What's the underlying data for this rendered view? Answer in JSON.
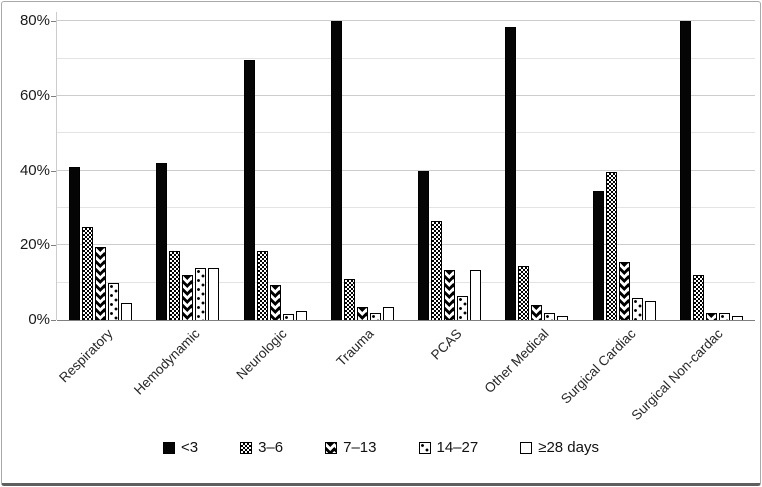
{
  "chart_data": {
    "type": "bar",
    "title": "",
    "xlabel": "",
    "ylabel": "",
    "categories": [
      "Respiratory",
      "Hemodynamic",
      "Neurologic",
      "Trauma",
      "PCAS",
      "Other Medical",
      "Surgical Cardiac",
      "Surgical Non-cardac"
    ],
    "series": [
      {
        "name": "<3",
        "pattern": "solid",
        "values": [
          41,
          42,
          69.5,
          80,
          40,
          78.5,
          34.5,
          80
        ]
      },
      {
        "name": "3–6",
        "pattern": "checker",
        "values": [
          25,
          18.5,
          18.5,
          11,
          26.5,
          14.5,
          39.5,
          12
        ]
      },
      {
        "name": "7–13",
        "pattern": "wave",
        "values": [
          19.5,
          12,
          9.5,
          3.5,
          13.5,
          4,
          15.5,
          2
        ]
      },
      {
        "name": "14–27",
        "pattern": "dots",
        "values": [
          10,
          14,
          1.5,
          2,
          6.5,
          2,
          6,
          2
        ]
      },
      {
        "name": "≥28 days",
        "pattern": "white",
        "values": [
          4.5,
          14,
          2.5,
          3.5,
          13.5,
          1,
          5,
          1
        ]
      }
    ],
    "y_axis": {
      "min": 0,
      "max": 80,
      "tick_labels": [
        "0%",
        "20%",
        "40%",
        "60%",
        "80%"
      ],
      "tick_values": [
        0,
        20,
        40,
        60,
        80
      ],
      "minor_gridline_step": 10
    },
    "legend_position": "bottom",
    "grid": true
  },
  "colors": {
    "bar_fill": "#000000",
    "bar_background": "#ffffff",
    "gridline_minor": "#e3e3e3",
    "gridline_major": "#cccccc",
    "axis_line": "#7f7f7f",
    "frame_border": "#a9a9a9",
    "text": "#1a1a1a",
    "background": "#ffffff"
  }
}
